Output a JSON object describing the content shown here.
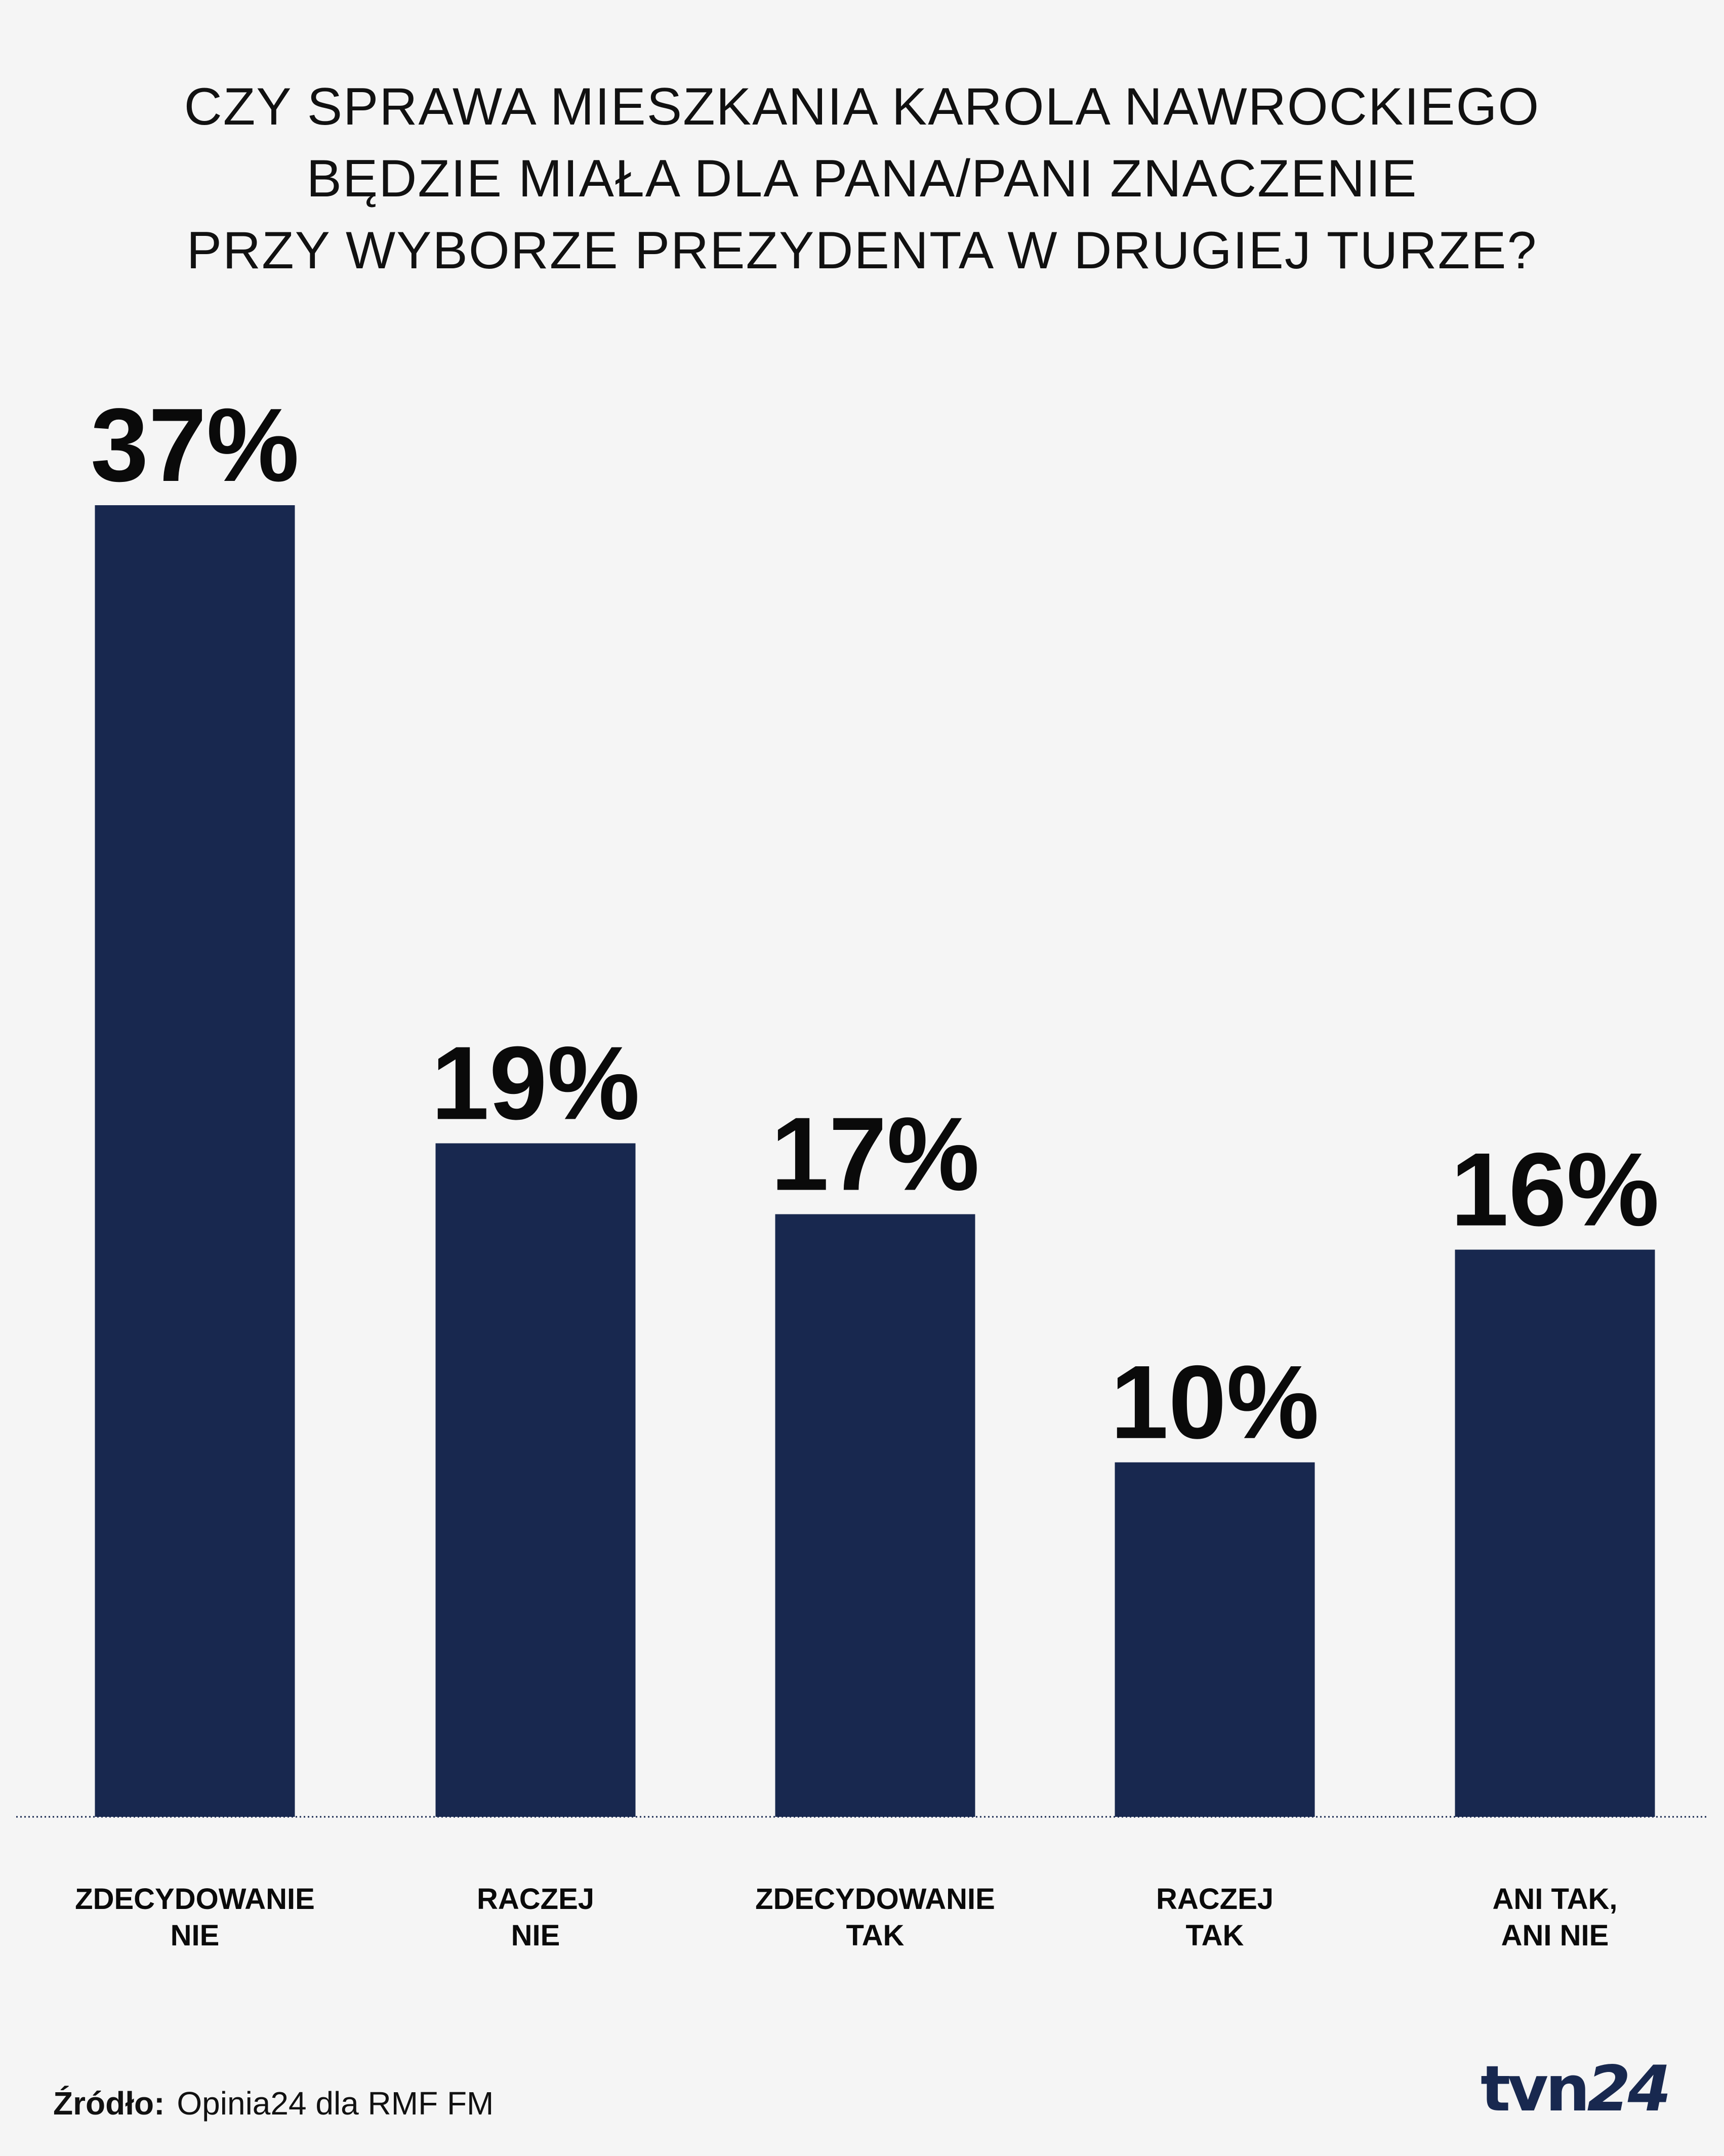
{
  "title_lines": [
    "CZY SPRAWA MIESZKANIA KAROLA NAWROCKIEGO",
    "BĘDZIE MIAŁA DLA PANA/PANI ZNACZENIE",
    "PRZY WYBORZE PREZYDENTA W DRUGIEJ TURZE?"
  ],
  "chart_data": {
    "type": "bar",
    "categories": [
      [
        "ZDECYDOWANIE",
        "NIE"
      ],
      [
        "RACZEJ",
        "NIE"
      ],
      [
        "ZDECYDOWANIE",
        "TAK"
      ],
      [
        "RACZEJ",
        "TAK"
      ],
      [
        "ANI TAK,",
        "ANI NIE"
      ]
    ],
    "values": [
      37,
      19,
      17,
      10,
      16
    ],
    "value_labels": [
      "37%",
      "19%",
      "17%",
      "10%",
      "16%"
    ],
    "unit": "%",
    "ylim": [
      0,
      37
    ],
    "grid": false,
    "bar_color": "#18284f"
  },
  "footer": {
    "source_label": "Źródło:",
    "source_text": "Opinia24 dla RMF FM"
  },
  "logo": {
    "text_a": "tvn",
    "text_b": "24",
    "color": "#18284f"
  }
}
